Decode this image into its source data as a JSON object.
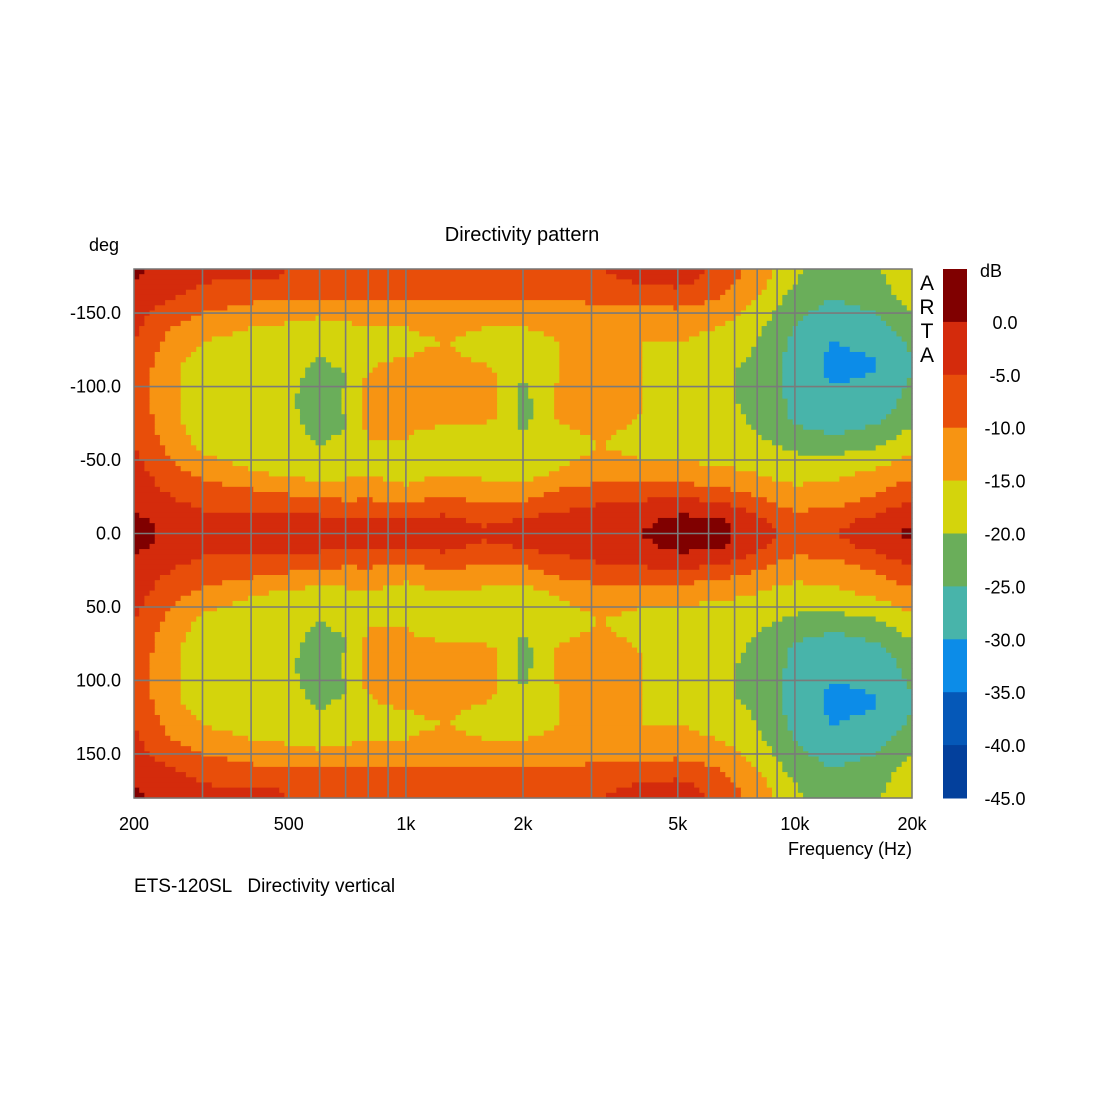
{
  "chart_data": {
    "type": "heatmap",
    "title": "Directivity pattern",
    "xlabel": "Frequency (Hz)",
    "ylabel": "deg",
    "x_scale": "log",
    "xlim": [
      200,
      20000
    ],
    "ylim": [
      -180,
      180
    ],
    "x_ticks": [
      {
        "value": 200,
        "label": "200"
      },
      {
        "value": 500,
        "label": "500"
      },
      {
        "value": 1000,
        "label": "1k"
      },
      {
        "value": 2000,
        "label": "2k"
      },
      {
        "value": 5000,
        "label": "5k"
      },
      {
        "value": 10000,
        "label": "10k"
      },
      {
        "value": 20000,
        "label": "20k"
      }
    ],
    "y_ticks": [
      {
        "value": -150,
        "label": "-150.0"
      },
      {
        "value": -100,
        "label": "-100.0"
      },
      {
        "value": -50,
        "label": "-50.0"
      },
      {
        "value": 0,
        "label": "0.0"
      },
      {
        "value": 50,
        "label": "50.0"
      },
      {
        "value": 100,
        "label": "100.0"
      },
      {
        "value": 150,
        "label": "150.0"
      }
    ],
    "grid": true,
    "colorbar": {
      "unit": "dB",
      "position": "right",
      "levels": [
        {
          "label": "",
          "color": "#800000"
        },
        {
          "label": "0.0",
          "color": "#d42b0c"
        },
        {
          "label": "-5.0",
          "color": "#e84e0a"
        },
        {
          "label": "-10.0",
          "color": "#f79412"
        },
        {
          "label": "-15.0",
          "color": "#d4d40c"
        },
        {
          "label": "-20.0",
          "color": "#6aae5a"
        },
        {
          "label": "-25.0",
          "color": "#48b4aa"
        },
        {
          "label": "-30.0",
          "color": "#0c8ce8"
        },
        {
          "label": "-35.0",
          "color": "#0558b8"
        },
        {
          "label": "-40.0",
          "color": "#03409c"
        },
        {
          "label": "-45.0",
          "color": ""
        }
      ]
    },
    "freq_samples": [
      200,
      250,
      300,
      400,
      500,
      600,
      700,
      800,
      1000,
      1250,
      1600,
      2000,
      2500,
      3150,
      4000,
      5000,
      6300,
      8000,
      10000,
      12500,
      16000,
      20000
    ],
    "angle_samples": [
      0,
      10,
      20,
      30,
      40,
      50,
      60,
      70,
      80,
      90,
      100,
      110,
      120,
      130,
      140,
      150,
      160,
      170,
      180
    ],
    "spl_db": [
      [
        2,
        -1,
        -3,
        -2,
        -3,
        -2,
        -3,
        -2,
        -3,
        -3,
        -4,
        -3,
        -2,
        -1,
        0,
        2,
        2,
        -3,
        -6,
        -5,
        -2,
        1
      ],
      [
        1,
        -2,
        -4,
        -3,
        -4,
        -4,
        -5,
        -4,
        -5,
        -4,
        -6,
        -5,
        -3,
        -2,
        -1,
        1,
        1,
        -4,
        -8,
        -7,
        -4,
        -1
      ],
      [
        -1,
        -4,
        -6,
        -7,
        -8,
        -8,
        -9,
        -9,
        -10,
        -8,
        -10,
        -9,
        -7,
        -5,
        -4,
        -3,
        -4,
        -8,
        -12,
        -11,
        -8,
        -4
      ],
      [
        -2,
        -6,
        -8,
        -10,
        -11,
        -12,
        -13,
        -12,
        -14,
        -11,
        -13,
        -13,
        -10,
        -8,
        -8,
        -8,
        -9,
        -12,
        -14,
        -14,
        -11,
        -7
      ],
      [
        -3,
        -8,
        -11,
        -14,
        -16,
        -17,
        -16,
        -15,
        -17,
        -15,
        -16,
        -17,
        -14,
        -12,
        -13,
        -13,
        -13,
        -15,
        -17,
        -16,
        -14,
        -11
      ],
      [
        -4,
        -10,
        -14,
        -17,
        -18,
        -19,
        -18,
        -16,
        -17,
        -17,
        -18,
        -18,
        -16,
        -14,
        -15,
        -15,
        -16,
        -17,
        -19,
        -19,
        -17,
        -14
      ],
      [
        -5,
        -12,
        -16,
        -19,
        -19,
        -20,
        -19,
        -16,
        -16,
        -18,
        -19,
        -19,
        -17,
        -15,
        -16,
        -16,
        -17,
        -19,
        -21,
        -22,
        -21,
        -17
      ],
      [
        -6,
        -13,
        -17,
        -20,
        -19,
        -21,
        -20,
        -14,
        -14,
        -17,
        -18,
        -20,
        -16,
        -14,
        -16,
        -17,
        -18,
        -20,
        -24,
        -26,
        -24,
        -19
      ],
      [
        -6,
        -14,
        -18,
        -20,
        -19,
        -22,
        -20,
        -13,
        -12,
        -11,
        -12,
        -22,
        -14,
        -12,
        -15,
        -17,
        -18,
        -21,
        -26,
        -28,
        -27,
        -22
      ],
      [
        -7,
        -14,
        -18,
        -20,
        -19,
        -23,
        -19,
        -13,
        -11,
        -10,
        -11,
        -22,
        -13,
        -11,
        -15,
        -17,
        -18,
        -22,
        -26,
        -29,
        -28,
        -23
      ],
      [
        -7,
        -14,
        -18,
        -20,
        -19,
        -22,
        -20,
        -13,
        -12,
        -11,
        -12,
        -21,
        -14,
        -12,
        -15,
        -16,
        -18,
        -22,
        -27,
        -30,
        -29,
        -24
      ],
      [
        -7,
        -14,
        -18,
        -20,
        -19,
        -21,
        -20,
        -15,
        -13,
        -12,
        -14,
        -19,
        -15,
        -13,
        -15,
        -16,
        -18,
        -22,
        -27,
        -31,
        -30,
        -25
      ],
      [
        -6,
        -13,
        -17,
        -19,
        -19,
        -20,
        -19,
        -16,
        -15,
        -14,
        -16,
        -18,
        -15,
        -14,
        -15,
        -16,
        -17,
        -21,
        -27,
        -31,
        -30,
        -25
      ],
      [
        -5,
        -12,
        -15,
        -17,
        -18,
        -19,
        -18,
        -16,
        -16,
        -15,
        -16,
        -17,
        -15,
        -14,
        -15,
        -15,
        -16,
        -20,
        -26,
        -30,
        -29,
        -24
      ],
      [
        -4,
        -10,
        -13,
        -15,
        -16,
        -17,
        -16,
        -15,
        -15,
        -14,
        -15,
        -15,
        -14,
        -13,
        -14,
        -14,
        -15,
        -19,
        -25,
        -29,
        -27,
        -22
      ],
      [
        -3,
        -8,
        -10,
        -12,
        -13,
        -14,
        -13,
        -13,
        -13,
        -13,
        -13,
        -13,
        -12,
        -11,
        -11,
        -11,
        -12,
        -17,
        -24,
        -27,
        -25,
        -20
      ],
      [
        -1,
        -5,
        -7,
        -9,
        -10,
        -10,
        -10,
        -10,
        -10,
        -10,
        -10,
        -10,
        -10,
        -9,
        -9,
        -8,
        -10,
        -15,
        -22,
        -25,
        -23,
        -18
      ],
      [
        0,
        -3,
        -5,
        -6,
        -6,
        -7,
        -7,
        -7,
        -7,
        -7,
        -7,
        -7,
        -7,
        -6,
        -5,
        -4,
        -7,
        -13,
        -20,
        -24,
        -22,
        -17
      ],
      [
        1,
        -2,
        -4,
        -1,
        -5,
        -6,
        -6,
        -6,
        -6,
        -6,
        -6,
        -6,
        -6,
        -5,
        -3,
        -2,
        -6,
        -12,
        -19,
        -23,
        -21,
        -16
      ]
    ]
  },
  "notes": {
    "caption": "ETS-120SL   Directivity vertical",
    "watermark": "ARTA"
  }
}
